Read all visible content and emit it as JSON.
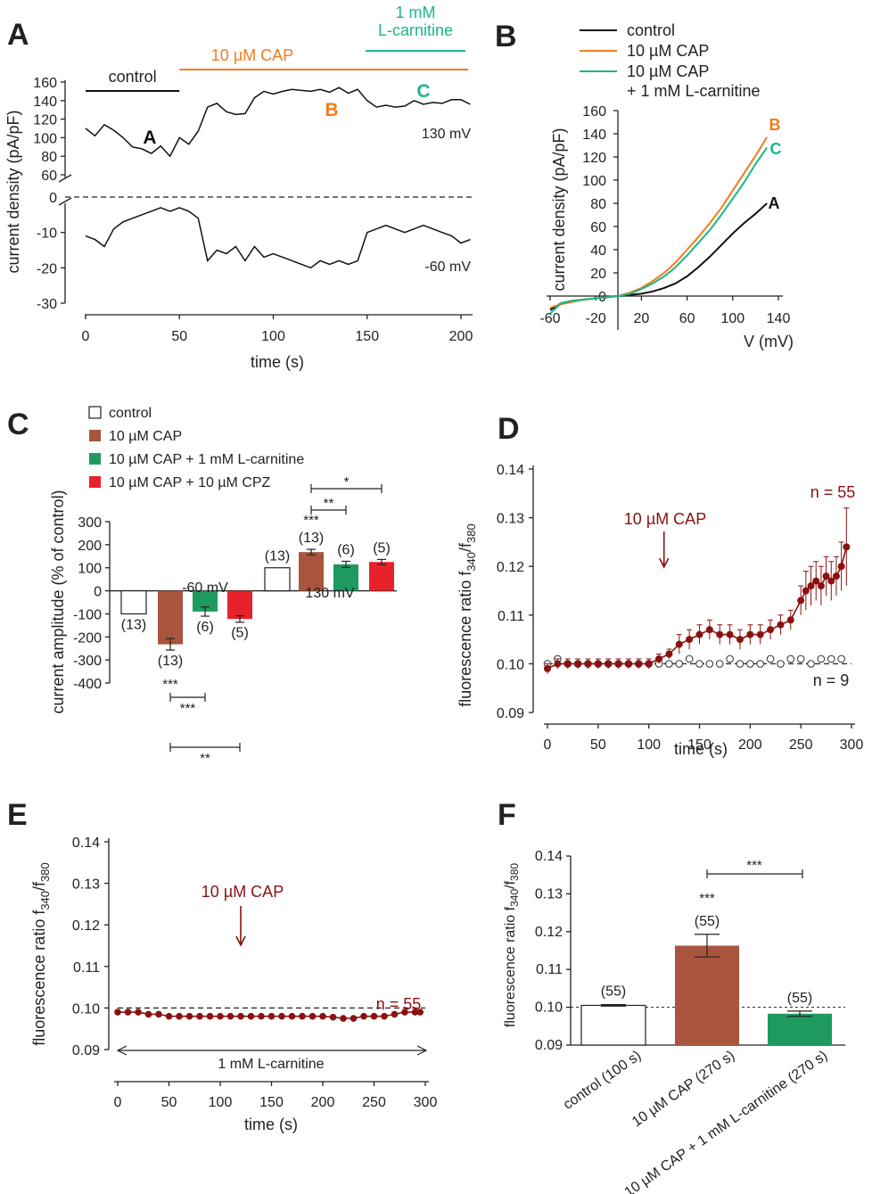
{
  "colors": {
    "black": "#111111",
    "orange": "#f07d1a",
    "teal": "#1db58a",
    "brown": "#a9553d",
    "green": "#1e9a5f",
    "red": "#e8222b",
    "darkred": "#8b1111",
    "white": "#ffffff"
  },
  "panel_letters": [
    "A",
    "B",
    "C",
    "D",
    "E",
    "F"
  ],
  "chart_data": [
    {
      "id": "A",
      "type": "line",
      "xlabel": "time (s)",
      "ylabel": "current density (pA/pF)",
      "xlim": [
        0,
        205
      ],
      "x_ticks": [
        "0",
        "50",
        "100",
        "150",
        "200"
      ],
      "upper_y_ticks": [
        "60",
        "80",
        "100",
        "120",
        "140",
        "160"
      ],
      "lower_y_ticks": [
        "-10",
        "-20",
        "-30"
      ],
      "zero_tick": "0",
      "upper_ylim": [
        60,
        160
      ],
      "lower_ylim": [
        -30,
        0
      ],
      "condition_bars": [
        {
          "label": "control",
          "start": 0,
          "end": 50,
          "color": "#111111"
        },
        {
          "label": "10 µM CAP",
          "start": 50,
          "end": 205,
          "color": "#f07d1a"
        },
        {
          "label1": "1 mM",
          "label2": "L-carnitine",
          "start": 148,
          "end": 200,
          "color": "#1db58a"
        }
      ],
      "point_labels": [
        {
          "text": "A",
          "x": 34,
          "y": 92,
          "color": "#111111"
        },
        {
          "text": "B",
          "x": 130,
          "y": 122,
          "color": "#f07d1a"
        },
        {
          "text": "C",
          "x": 179,
          "y": 142,
          "color": "#1db58a"
        }
      ],
      "voltage_labels": [
        "130 mV",
        "-60 mV"
      ],
      "series": [
        {
          "name": "130 mV",
          "x": [
            0,
            5,
            10,
            15,
            20,
            25,
            30,
            35,
            40,
            45,
            50,
            55,
            60,
            65,
            70,
            75,
            80,
            85,
            90,
            95,
            100,
            105,
            110,
            115,
            120,
            125,
            130,
            135,
            140,
            145,
            150,
            155,
            160,
            165,
            170,
            175,
            180,
            185,
            190,
            195,
            200,
            205
          ],
          "y": [
            110,
            102,
            114,
            108,
            100,
            90,
            88,
            83,
            91,
            80,
            100,
            93,
            107,
            133,
            137,
            128,
            125,
            126,
            143,
            150,
            147,
            150,
            152,
            151,
            150,
            152,
            149,
            154,
            148,
            152,
            140,
            133,
            135,
            133,
            134,
            140,
            136,
            138,
            137,
            141,
            141,
            136
          ]
        },
        {
          "name": "-60 mV",
          "x": [
            0,
            5,
            10,
            15,
            20,
            25,
            30,
            35,
            40,
            45,
            50,
            55,
            60,
            65,
            70,
            75,
            80,
            85,
            90,
            95,
            100,
            105,
            110,
            115,
            120,
            125,
            130,
            135,
            140,
            145,
            150,
            155,
            160,
            165,
            170,
            175,
            180,
            185,
            190,
            195,
            200,
            205
          ],
          "y": [
            -11,
            -12,
            -14,
            -9,
            -7,
            -6,
            -5,
            -4,
            -3,
            -4,
            -3,
            -4,
            -6,
            -18,
            -15,
            -16,
            -14,
            -18,
            -14,
            -17,
            -16,
            -17,
            -18,
            -19,
            -20,
            -18,
            -19,
            -18,
            -19,
            -18,
            -10,
            -9,
            -8,
            -9,
            -10,
            -9,
            -8,
            -9,
            -10,
            -11,
            -13,
            -12
          ]
        }
      ]
    },
    {
      "id": "B",
      "type": "line",
      "xlabel": "V (mV)",
      "ylabel": "current density (pA/pF)",
      "xlim": [
        -60,
        140
      ],
      "ylim": [
        -20,
        160
      ],
      "x_ticks": [
        "-60",
        "-20",
        "20",
        "60",
        "100",
        "140"
      ],
      "y_ticks": [
        "0",
        "20",
        "40",
        "60",
        "80",
        "100",
        "120",
        "140",
        "160"
      ],
      "legend": [
        "control",
        "10 µM CAP",
        "10 µM CAP",
        "+ 1 mM L-carnitine"
      ],
      "end_labels": [
        "A",
        "B",
        "C"
      ],
      "series": [
        {
          "name": "control",
          "label": "A",
          "color": "#111111",
          "x": [
            -60,
            -50,
            -40,
            -30,
            -20,
            -10,
            0,
            10,
            20,
            30,
            40,
            50,
            60,
            70,
            80,
            90,
            100,
            110,
            120,
            130
          ],
          "y": [
            -12,
            -6,
            -4,
            -3,
            -2,
            -1,
            0,
            1,
            2,
            4,
            7,
            11,
            17,
            25,
            34,
            44,
            54,
            63,
            71,
            80
          ]
        },
        {
          "name": "10 µM CAP",
          "label": "B",
          "color": "#f07d1a",
          "x": [
            -60,
            -50,
            -40,
            -30,
            -20,
            -10,
            0,
            10,
            20,
            30,
            40,
            50,
            60,
            70,
            80,
            90,
            100,
            110,
            120,
            130
          ],
          "y": [
            -10,
            -7,
            -5,
            -3,
            -2,
            -1,
            0,
            3,
            7,
            13,
            20,
            29,
            40,
            51,
            63,
            76,
            91,
            106,
            121,
            137
          ]
        },
        {
          "name": "10 µM CAP + 1 mM L-carnitine",
          "label": "C",
          "color": "#1db58a",
          "x": [
            -60,
            -50,
            -40,
            -30,
            -20,
            -10,
            0,
            10,
            20,
            30,
            40,
            50,
            60,
            70,
            80,
            90,
            100,
            110,
            120,
            130
          ],
          "y": [
            -15,
            -6,
            -4,
            -3,
            -2,
            -1,
            0,
            2,
            6,
            11,
            17,
            25,
            35,
            46,
            57,
            70,
            84,
            98,
            114,
            128
          ]
        }
      ]
    },
    {
      "id": "C",
      "type": "bar",
      "ylabel": "current amplitude (% of control)",
      "ylim": [
        -400,
        300
      ],
      "y_ticks": [
        "300",
        "200",
        "100",
        "0",
        "-100",
        "-200",
        "-300",
        "-400"
      ],
      "legend": [
        "control",
        "10 µM CAP",
        "10 µM CAP + 1 mM L-carnitine",
        "10 µM CAP + 10 µM CPZ"
      ],
      "groups": [
        {
          "label": "-60 mV",
          "bars": [
            {
              "value": -100,
              "err": 0,
              "n": "(13)",
              "color": "#ffffff"
            },
            {
              "value": -232,
              "err": 25,
              "n": "(13)",
              "stars": "***",
              "color": "#a9553d"
            },
            {
              "value": -90,
              "err": 20,
              "n": "(6)",
              "color": "#1e9a5f"
            },
            {
              "value": -122,
              "err": 14,
              "n": "(5)",
              "color": "#e8222b"
            }
          ]
        },
        {
          "label": "130 mV",
          "bars": [
            {
              "value": 100,
              "err": 0,
              "n": "(13)",
              "color": "#ffffff"
            },
            {
              "value": 168,
              "err": 12,
              "n": "(13)",
              "stars": "***",
              "color": "#a9553d"
            },
            {
              "value": 115,
              "err": 13,
              "n": "(6)",
              "color": "#1e9a5f"
            },
            {
              "value": 125,
              "err": 11,
              "n": "(5)",
              "color": "#e8222b"
            }
          ]
        }
      ],
      "brackets": [
        {
          "group": 0,
          "from": 1,
          "to": 2,
          "stars": "***"
        },
        {
          "group": 0,
          "from": 1,
          "to": 3,
          "stars": "**"
        },
        {
          "group": 1,
          "from": 1,
          "to": 2,
          "stars": "**"
        },
        {
          "group": 1,
          "from": 1,
          "to": 3,
          "stars": "*"
        }
      ]
    },
    {
      "id": "D",
      "type": "scatter",
      "xlabel": "time (s)",
      "ylabel": "fluorescence ratio f340/f380",
      "ylabel_main": "fluorescence ratio f",
      "ylabel_sub1": "340",
      "ylabel_sep": "/f",
      "ylabel_sub2": "380",
      "xlim": [
        0,
        300
      ],
      "ylim": [
        0.09,
        0.14
      ],
      "x_ticks": [
        "0",
        "50",
        "100",
        "150",
        "200",
        "250",
        "300"
      ],
      "y_ticks": [
        "0.09",
        "0.10",
        "0.11",
        "0.12",
        "0.13",
        "0.14"
      ],
      "baseline": 0.1,
      "annotation": "10 µM CAP",
      "annotation_x": 115,
      "n_labels": [
        "n = 55",
        "n = 9"
      ],
      "series": [
        {
          "name": "CAP",
          "color": "#8b1111",
          "x": [
            0,
            10,
            20,
            30,
            40,
            50,
            60,
            70,
            80,
            90,
            100,
            110,
            120,
            130,
            140,
            150,
            160,
            170,
            180,
            190,
            200,
            210,
            220,
            230,
            240,
            250,
            255,
            260,
            265,
            270,
            275,
            280,
            285,
            290,
            295
          ],
          "y": [
            0.099,
            0.1,
            0.1,
            0.1,
            0.1,
            0.1,
            0.1,
            0.1,
            0.1,
            0.1,
            0.1,
            0.101,
            0.102,
            0.104,
            0.105,
            0.106,
            0.107,
            0.106,
            0.106,
            0.105,
            0.106,
            0.106,
            0.107,
            0.108,
            0.109,
            0.113,
            0.115,
            0.116,
            0.117,
            0.116,
            0.118,
            0.117,
            0.118,
            0.12,
            0.124
          ],
          "err": [
            0.001,
            0.001,
            0.001,
            0.001,
            0.001,
            0.001,
            0.001,
            0.001,
            0.001,
            0.001,
            0.001,
            0.001,
            0.001,
            0.002,
            0.002,
            0.002,
            0.002,
            0.002,
            0.002,
            0.002,
            0.002,
            0.002,
            0.002,
            0.002,
            0.002,
            0.003,
            0.004,
            0.004,
            0.004,
            0.004,
            0.004,
            0.004,
            0.004,
            0.005,
            0.008
          ]
        },
        {
          "name": "control",
          "color": "#ffffff",
          "x": [
            0,
            10,
            20,
            30,
            40,
            50,
            60,
            70,
            80,
            90,
            100,
            110,
            120,
            130,
            140,
            150,
            160,
            170,
            180,
            190,
            200,
            210,
            220,
            230,
            240,
            250,
            260,
            270,
            280,
            290
          ],
          "y": [
            0.1,
            0.101,
            0.1,
            0.1,
            0.1,
            0.1,
            0.1,
            0.1,
            0.1,
            0.1,
            0.1,
            0.1,
            0.1,
            0.1,
            0.101,
            0.1,
            0.1,
            0.1,
            0.101,
            0.1,
            0.1,
            0.1,
            0.101,
            0.1,
            0.101,
            0.101,
            0.1,
            0.101,
            0.101,
            0.101
          ]
        }
      ]
    },
    {
      "id": "E",
      "type": "scatter",
      "xlabel": "time (s)",
      "ylabel": "fluorescence ratio f340/f380",
      "ylabel_main": "fluorescence ratio f",
      "ylabel_sub1": "340",
      "ylabel_sep": "/f",
      "ylabel_sub2": "380",
      "xlim": [
        0,
        300
      ],
      "ylim": [
        0.09,
        0.14
      ],
      "x_ticks": [
        "0",
        "50",
        "100",
        "150",
        "200",
        "250",
        "300"
      ],
      "y_ticks": [
        "0.09",
        "0.10",
        "0.11",
        "0.12",
        "0.13",
        "0.14"
      ],
      "baseline": 0.1,
      "annotation": "10 µM CAP",
      "annotation_x": 120,
      "n_label": "n = 55",
      "range_label": "1 mM L-carnitine",
      "series": [
        {
          "name": "CAP + L-carnitine",
          "color": "#8b1111",
          "x": [
            0,
            10,
            20,
            30,
            40,
            50,
            60,
            70,
            80,
            90,
            100,
            110,
            120,
            130,
            140,
            150,
            160,
            170,
            180,
            190,
            200,
            210,
            220,
            230,
            240,
            250,
            260,
            270,
            280,
            290,
            295
          ],
          "y": [
            0.099,
            0.099,
            0.099,
            0.0985,
            0.0985,
            0.098,
            0.098,
            0.098,
            0.098,
            0.098,
            0.098,
            0.098,
            0.098,
            0.098,
            0.098,
            0.098,
            0.098,
            0.098,
            0.098,
            0.098,
            0.098,
            0.0978,
            0.0975,
            0.0975,
            0.098,
            0.098,
            0.098,
            0.0985,
            0.099,
            0.099,
            0.099
          ]
        }
      ]
    },
    {
      "id": "F",
      "type": "bar",
      "ylabel": "fluorescence ratio f340/f380",
      "ylabel_main": "fluorescence ratio f",
      "ylabel_sub1": "340",
      "ylabel_sep": "/f",
      "ylabel_sub2": "380",
      "ylim": [
        0.09,
        0.14
      ],
      "y_ticks": [
        "0.09",
        "0.10",
        "0.11",
        "0.12",
        "0.13",
        "0.14"
      ],
      "baseline": 0.1,
      "categories": [
        "control (100 s)",
        "10 µM CAP (270 s)",
        "10 µM CAP + 1 mM L-carnitine (270 s)"
      ],
      "values": [
        0.1005,
        0.1163,
        0.0983
      ],
      "errors": [
        0.0002,
        0.003,
        0.0007
      ],
      "n_labels": [
        "(55)",
        "(55)",
        "(55)"
      ],
      "stars": "***",
      "bracket_stars": "***",
      "colors": [
        "#ffffff",
        "#a9553d",
        "#1e9a5f"
      ]
    }
  ]
}
